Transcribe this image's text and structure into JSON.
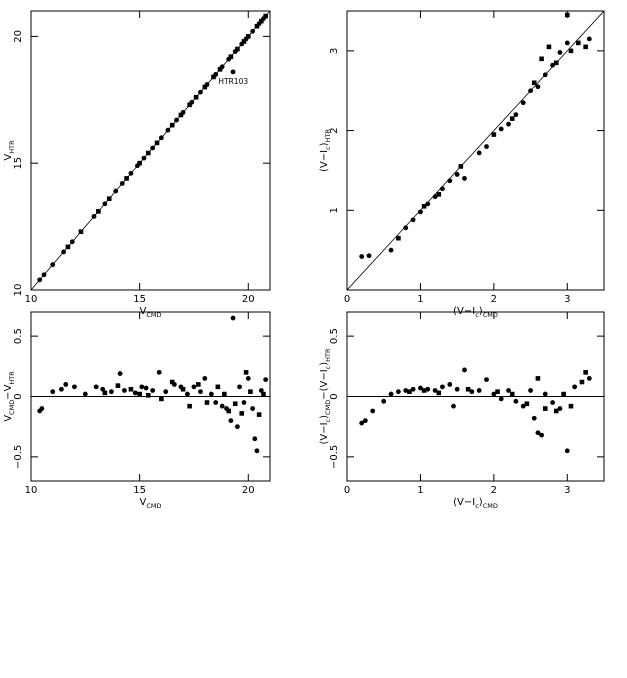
{
  "chart_data": [
    {
      "id": "tl",
      "type": "scatter",
      "xlabel": {
        "main": "V",
        "sub": "CMD"
      },
      "ylabel": {
        "main": "V",
        "sub": "HTR"
      },
      "xlim": [
        10,
        21
      ],
      "ylim": [
        10,
        21
      ],
      "xticks": [
        10,
        15,
        20
      ],
      "yticks": [
        10,
        15,
        20
      ],
      "grid": false,
      "reference_line": {
        "type": "identity"
      },
      "annotations": [
        {
          "text": "HTR103",
          "x": 19.4,
          "y": 18.6
        }
      ],
      "series": [
        {
          "marker": "circle",
          "points": [
            [
              10.4,
              10.4
            ],
            [
              10.6,
              10.6
            ],
            [
              11.0,
              11.0
            ],
            [
              11.5,
              11.5
            ],
            [
              11.9,
              11.9
            ],
            [
              12.9,
              12.9
            ],
            [
              13.4,
              13.4
            ],
            [
              13.9,
              13.9
            ],
            [
              14.2,
              14.2
            ],
            [
              14.6,
              14.6
            ],
            [
              14.9,
              14.9
            ],
            [
              15.2,
              15.2
            ],
            [
              15.6,
              15.6
            ],
            [
              16.0,
              16.0
            ],
            [
              16.3,
              16.3
            ],
            [
              16.7,
              16.7
            ],
            [
              17.0,
              17.0
            ],
            [
              17.4,
              17.4
            ],
            [
              17.8,
              17.8
            ],
            [
              18.1,
              18.1
            ],
            [
              18.5,
              18.5
            ],
            [
              18.8,
              18.8
            ],
            [
              19.1,
              19.1
            ],
            [
              19.3,
              18.6
            ],
            [
              19.4,
              19.4
            ],
            [
              19.7,
              19.7
            ],
            [
              19.9,
              19.9
            ],
            [
              20.2,
              20.2
            ],
            [
              20.5,
              20.5
            ],
            [
              20.7,
              20.7
            ]
          ]
        },
        {
          "marker": "square",
          "points": [
            [
              11.7,
              11.7
            ],
            [
              12.3,
              12.3
            ],
            [
              13.1,
              13.1
            ],
            [
              13.6,
              13.6
            ],
            [
              14.4,
              14.4
            ],
            [
              15.0,
              15.0
            ],
            [
              15.4,
              15.4
            ],
            [
              15.8,
              15.8
            ],
            [
              16.5,
              16.5
            ],
            [
              16.9,
              16.9
            ],
            [
              17.3,
              17.3
            ],
            [
              17.6,
              17.6
            ],
            [
              18.0,
              18.0
            ],
            [
              18.4,
              18.4
            ],
            [
              18.7,
              18.7
            ],
            [
              19.2,
              19.2
            ],
            [
              19.5,
              19.5
            ],
            [
              19.8,
              19.8
            ],
            [
              20.0,
              20.0
            ],
            [
              20.4,
              20.4
            ],
            [
              20.6,
              20.6
            ],
            [
              20.8,
              20.8
            ]
          ]
        }
      ]
    },
    {
      "id": "tr",
      "type": "scatter",
      "xlabel": {
        "main": "(V−I",
        "sub1": "c",
        "mid": ")",
        "sub2": "CMD"
      },
      "ylabel": {
        "main": "(V−I",
        "sub1": "c",
        "mid": ")",
        "sub2": "HTR"
      },
      "xlim": [
        0,
        3.5
      ],
      "ylim": [
        0,
        3.5
      ],
      "xticks": [
        0,
        1,
        2,
        3
      ],
      "yticks": [
        1,
        2,
        3
      ],
      "grid": false,
      "reference_line": {
        "type": "identity"
      },
      "series": [
        {
          "marker": "circle",
          "points": [
            [
              0.2,
              0.42
            ],
            [
              0.3,
              0.43
            ],
            [
              0.6,
              0.5
            ],
            [
              0.8,
              0.78
            ],
            [
              0.9,
              0.88
            ],
            [
              1.0,
              0.98
            ],
            [
              1.1,
              1.08
            ],
            [
              1.2,
              1.17
            ],
            [
              1.3,
              1.27
            ],
            [
              1.4,
              1.37
            ],
            [
              1.5,
              1.45
            ],
            [
              1.6,
              1.4
            ],
            [
              1.8,
              1.72
            ],
            [
              1.9,
              1.8
            ],
            [
              2.1,
              2.02
            ],
            [
              2.2,
              2.08
            ],
            [
              2.3,
              2.2
            ],
            [
              2.4,
              2.35
            ],
            [
              2.5,
              2.5
            ],
            [
              2.6,
              2.55
            ],
            [
              2.7,
              2.7
            ],
            [
              2.8,
              2.82
            ],
            [
              2.9,
              2.98
            ],
            [
              3.0,
              3.1
            ],
            [
              3.3,
              3.15
            ]
          ]
        },
        {
          "marker": "square",
          "points": [
            [
              0.7,
              0.65
            ],
            [
              1.05,
              1.05
            ],
            [
              1.25,
              1.2
            ],
            [
              1.55,
              1.55
            ],
            [
              2.0,
              1.95
            ],
            [
              2.25,
              2.15
            ],
            [
              2.55,
              2.6
            ],
            [
              2.65,
              2.9
            ],
            [
              2.75,
              3.05
            ],
            [
              2.85,
              2.85
            ],
            [
              3.0,
              3.45
            ],
            [
              3.05,
              3.0
            ],
            [
              3.15,
              3.1
            ],
            [
              3.25,
              3.05
            ]
          ]
        }
      ]
    },
    {
      "id": "bl",
      "type": "scatter",
      "xlabel": {
        "main": "V",
        "sub": "CMD"
      },
      "ylabel": {
        "main": "V",
        "sub": "CMD",
        "main2": "−V",
        "sub2": "HTR"
      },
      "xlim": [
        10,
        21
      ],
      "ylim": [
        -0.7,
        0.7
      ],
      "xticks": [
        10,
        15,
        20
      ],
      "yticks": [
        -0.5,
        0,
        0.5
      ],
      "grid": false,
      "reference_line": {
        "type": "zero"
      },
      "series": [
        {
          "marker": "circle",
          "points": [
            [
              10.4,
              -0.12
            ],
            [
              10.5,
              -0.1
            ],
            [
              11.0,
              0.04
            ],
            [
              11.4,
              0.06
            ],
            [
              11.6,
              0.1
            ],
            [
              12.0,
              0.08
            ],
            [
              12.5,
              0.02
            ],
            [
              13.0,
              0.08
            ],
            [
              13.3,
              0.06
            ],
            [
              13.7,
              0.04
            ],
            [
              14.1,
              0.19
            ],
            [
              14.3,
              0.05
            ],
            [
              14.8,
              0.03
            ],
            [
              15.1,
              0.08
            ],
            [
              15.3,
              0.07
            ],
            [
              15.6,
              0.05
            ],
            [
              15.9,
              0.2
            ],
            [
              16.2,
              0.04
            ],
            [
              16.6,
              0.1
            ],
            [
              16.9,
              0.08
            ],
            [
              17.2,
              0.02
            ],
            [
              17.5,
              0.08
            ],
            [
              17.8,
              0.04
            ],
            [
              18.0,
              0.15
            ],
            [
              18.3,
              0.02
            ],
            [
              18.5,
              -0.05
            ],
            [
              18.8,
              -0.08
            ],
            [
              19.0,
              -0.1
            ],
            [
              19.2,
              -0.2
            ],
            [
              19.3,
              0.65
            ],
            [
              19.5,
              -0.25
            ],
            [
              19.6,
              0.08
            ],
            [
              19.8,
              -0.05
            ],
            [
              20.0,
              0.15
            ],
            [
              20.2,
              -0.1
            ],
            [
              20.3,
              -0.35
            ],
            [
              20.4,
              -0.45
            ],
            [
              20.6,
              0.05
            ],
            [
              20.8,
              0.14
            ]
          ]
        },
        {
          "marker": "square",
          "points": [
            [
              13.4,
              0.03
            ],
            [
              14.0,
              0.09
            ],
            [
              14.6,
              0.06
            ],
            [
              15.0,
              0.02
            ],
            [
              15.4,
              0.01
            ],
            [
              16.0,
              -0.02
            ],
            [
              16.5,
              0.12
            ],
            [
              17.0,
              0.06
            ],
            [
              17.3,
              -0.08
            ],
            [
              17.7,
              0.1
            ],
            [
              18.1,
              -0.05
            ],
            [
              18.6,
              0.08
            ],
            [
              18.9,
              0.02
            ],
            [
              19.1,
              -0.12
            ],
            [
              19.4,
              -0.06
            ],
            [
              19.7,
              -0.14
            ],
            [
              19.9,
              0.2
            ],
            [
              20.1,
              0.04
            ],
            [
              20.5,
              -0.15
            ],
            [
              20.7,
              0.02
            ]
          ]
        }
      ]
    },
    {
      "id": "br",
      "type": "scatter",
      "xlabel": {
        "main": "(V−I",
        "sub1": "c",
        "mid": ")",
        "sub2": "CMD"
      },
      "ylabel": {
        "main": "(V−I",
        "sub1": "c",
        "mid": ")",
        "sub2": "CMD",
        "main2": "−(V−I",
        "sub3": "c",
        "mid2": ")",
        "sub4": "HTR"
      },
      "xlim": [
        0,
        3.5
      ],
      "ylim": [
        -0.7,
        0.7
      ],
      "xticks": [
        0,
        1,
        2,
        3
      ],
      "yticks": [
        -0.5,
        0,
        0.5
      ],
      "grid": false,
      "reference_line": {
        "type": "zero"
      },
      "series": [
        {
          "marker": "circle",
          "points": [
            [
              0.2,
              -0.22
            ],
            [
              0.25,
              -0.2
            ],
            [
              0.35,
              -0.12
            ],
            [
              0.5,
              -0.04
            ],
            [
              0.6,
              0.02
            ],
            [
              0.7,
              0.04
            ],
            [
              0.8,
              0.05
            ],
            [
              0.9,
              0.06
            ],
            [
              1.0,
              0.07
            ],
            [
              1.1,
              0.06
            ],
            [
              1.2,
              0.05
            ],
            [
              1.3,
              0.08
            ],
            [
              1.4,
              0.1
            ],
            [
              1.45,
              -0.08
            ],
            [
              1.5,
              0.06
            ],
            [
              1.6,
              0.22
            ],
            [
              1.7,
              0.04
            ],
            [
              1.8,
              0.05
            ],
            [
              1.9,
              0.14
            ],
            [
              2.0,
              0.02
            ],
            [
              2.1,
              -0.02
            ],
            [
              2.2,
              0.05
            ],
            [
              2.3,
              -0.04
            ],
            [
              2.4,
              -0.08
            ],
            [
              2.5,
              0.05
            ],
            [
              2.55,
              -0.18
            ],
            [
              2.6,
              -0.3
            ],
            [
              2.65,
              -0.32
            ],
            [
              2.7,
              0.02
            ],
            [
              2.8,
              -0.05
            ],
            [
              2.9,
              -0.1
            ],
            [
              3.0,
              -0.45
            ],
            [
              3.1,
              0.08
            ],
            [
              3.3,
              0.15
            ]
          ]
        },
        {
          "marker": "square",
          "points": [
            [
              0.85,
              0.04
            ],
            [
              1.05,
              0.05
            ],
            [
              1.25,
              0.03
            ],
            [
              1.65,
              0.06
            ],
            [
              2.05,
              0.04
            ],
            [
              2.25,
              0.02
            ],
            [
              2.45,
              -0.06
            ],
            [
              2.6,
              0.15
            ],
            [
              2.7,
              -0.1
            ],
            [
              2.85,
              -0.12
            ],
            [
              2.95,
              0.02
            ],
            [
              3.05,
              -0.08
            ],
            [
              3.2,
              0.12
            ],
            [
              3.25,
              0.2
            ]
          ]
        }
      ]
    }
  ]
}
